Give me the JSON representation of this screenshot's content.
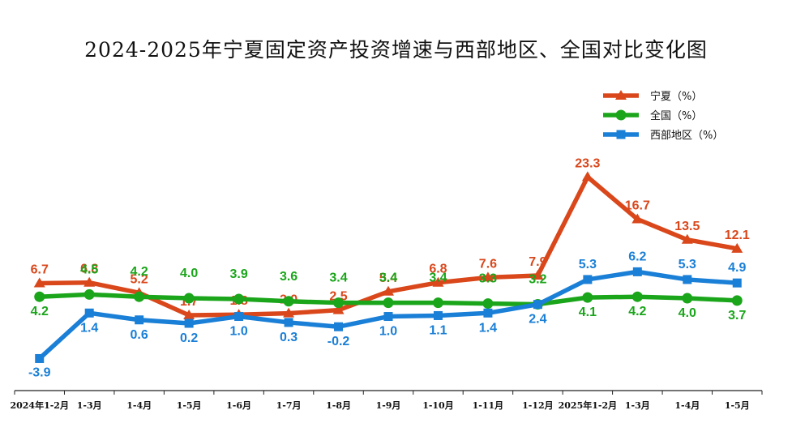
{
  "chart_data": {
    "type": "line",
    "title": "2024-2025年宁夏固定资产投资增速与西部地区、全国对比变化图",
    "categories": [
      "2024年1-2月",
      "1-3月",
      "1-4月",
      "1-5月",
      "1-6月",
      "1-7月",
      "1-8月",
      "1-9月",
      "1-10月",
      "1-11月",
      "1-12月",
      "2025年1-2月",
      "1-3月",
      "1-4月",
      "1-5月"
    ],
    "series": [
      {
        "name": "宁夏（%）",
        "color": "#d9471b",
        "marker": "triangle",
        "values": [
          6.7,
          6.8,
          5.2,
          1.7,
          1.8,
          2.0,
          2.5,
          5.4,
          6.8,
          7.6,
          7.9,
          23.3,
          16.7,
          13.5,
          12.1
        ]
      },
      {
        "name": "全国（%）",
        "color": "#1aa51a",
        "marker": "circle",
        "values": [
          4.2,
          4.5,
          4.2,
          4.0,
          3.9,
          3.6,
          3.4,
          3.4,
          3.4,
          3.3,
          3.2,
          4.1,
          4.2,
          4.0,
          3.7
        ]
      },
      {
        "name": "西部地区（%）",
        "color": "#1a7fd6",
        "marker": "square",
        "values": [
          -3.9,
          1.4,
          0.6,
          0.2,
          1.0,
          0.3,
          -0.2,
          1.0,
          1.1,
          1.4,
          2.4,
          5.3,
          6.2,
          5.3,
          4.9
        ]
      }
    ],
    "legend": "top-right",
    "grid": false
  }
}
